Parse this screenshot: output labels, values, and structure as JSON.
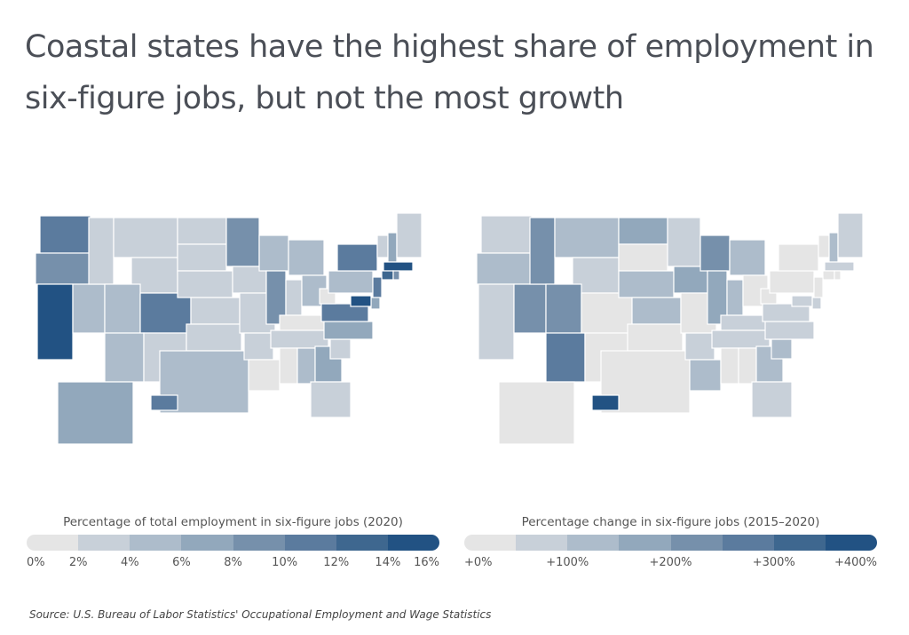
{
  "title": "Coastal states have the highest share of employment in six-figure jobs, but not the most growth",
  "source": "Source:  U.S. Bureau of Labor Statistics' Occupational Employment and Wage Statistics",
  "colors": [
    "#e5e5e5",
    "#c8d0d9",
    "#adbccb",
    "#92a8bc",
    "#7690ab",
    "#5b7b9e",
    "#3e678f",
    "#225283"
  ],
  "chart_data": [
    {
      "type": "choropleth",
      "legend_title": "Percentage of total employment in six-figure jobs (2020)",
      "bins": [
        0,
        2,
        4,
        6,
        8,
        10,
        12,
        14,
        16
      ],
      "tick_labels": [
        "0%",
        "2%",
        "4%",
        "6%",
        "8%",
        "10%",
        "12%",
        "14%",
        "16%"
      ],
      "legend_placement": "bottom",
      "values": {
        "WA": 11,
        "OR": 9,
        "CA": 15,
        "NV": 5,
        "ID": 3,
        "MT": 3,
        "WY": 3,
        "UT": 5,
        "CO": 11,
        "AZ": 5,
        "NM": 3,
        "ND": 3,
        "SD": 3,
        "NE": 3,
        "KS": 3,
        "OK": 3,
        "TX": 5,
        "MN": 9,
        "IA": 3,
        "MO": 3,
        "AR": 3,
        "LA": 1,
        "WI": 5,
        "IL": 9,
        "MI": 5,
        "IN": 3,
        "OH": 5,
        "KY": 1,
        "TN": 3,
        "MS": 1,
        "AL": 5,
        "GA": 7,
        "FL": 3,
        "SC": 3,
        "NC": 7,
        "VA": 11,
        "WV": 1,
        "PA": 5,
        "NY": 11,
        "VT": 3,
        "NH": 7,
        "ME": 3,
        "MA": 15,
        "CT": 13,
        "RI": 9,
        "NJ": 11,
        "DE": 7,
        "MD": 15,
        "AK": 7,
        "HI": 11
      }
    },
    {
      "type": "choropleth",
      "legend_title": "Percentage change in six-figure jobs (2015–2020)",
      "bins": [
        0,
        50,
        100,
        150,
        200,
        250,
        300,
        350,
        400
      ],
      "tick_labels": [
        "+0%",
        "+100%",
        "+200%",
        "+300%",
        "+400%"
      ],
      "legend_placement": "bottom",
      "values": {
        "WA": 75,
        "OR": 125,
        "CA": 75,
        "NV": 225,
        "ID": 225,
        "MT": 125,
        "WY": 75,
        "UT": 225,
        "CO": 25,
        "AZ": 275,
        "NM": 25,
        "ND": 175,
        "SD": 25,
        "NE": 125,
        "KS": 125,
        "OK": 25,
        "TX": 25,
        "MN": 75,
        "IA": 175,
        "MO": 25,
        "AR": 75,
        "LA": 125,
        "WI": 225,
        "IL": 175,
        "MI": 125,
        "IN": 125,
        "OH": 25,
        "KY": 75,
        "TN": 75,
        "MS": 25,
        "AL": 25,
        "GA": 125,
        "FL": 75,
        "SC": 125,
        "NC": 75,
        "VA": 75,
        "WV": 25,
        "PA": 25,
        "NY": 25,
        "VT": 25,
        "NH": 125,
        "ME": 75,
        "MA": 75,
        "CT": 25,
        "RI": 25,
        "NJ": 25,
        "DE": 75,
        "MD": 75,
        "AK": 25,
        "HI": 375
      }
    }
  ]
}
